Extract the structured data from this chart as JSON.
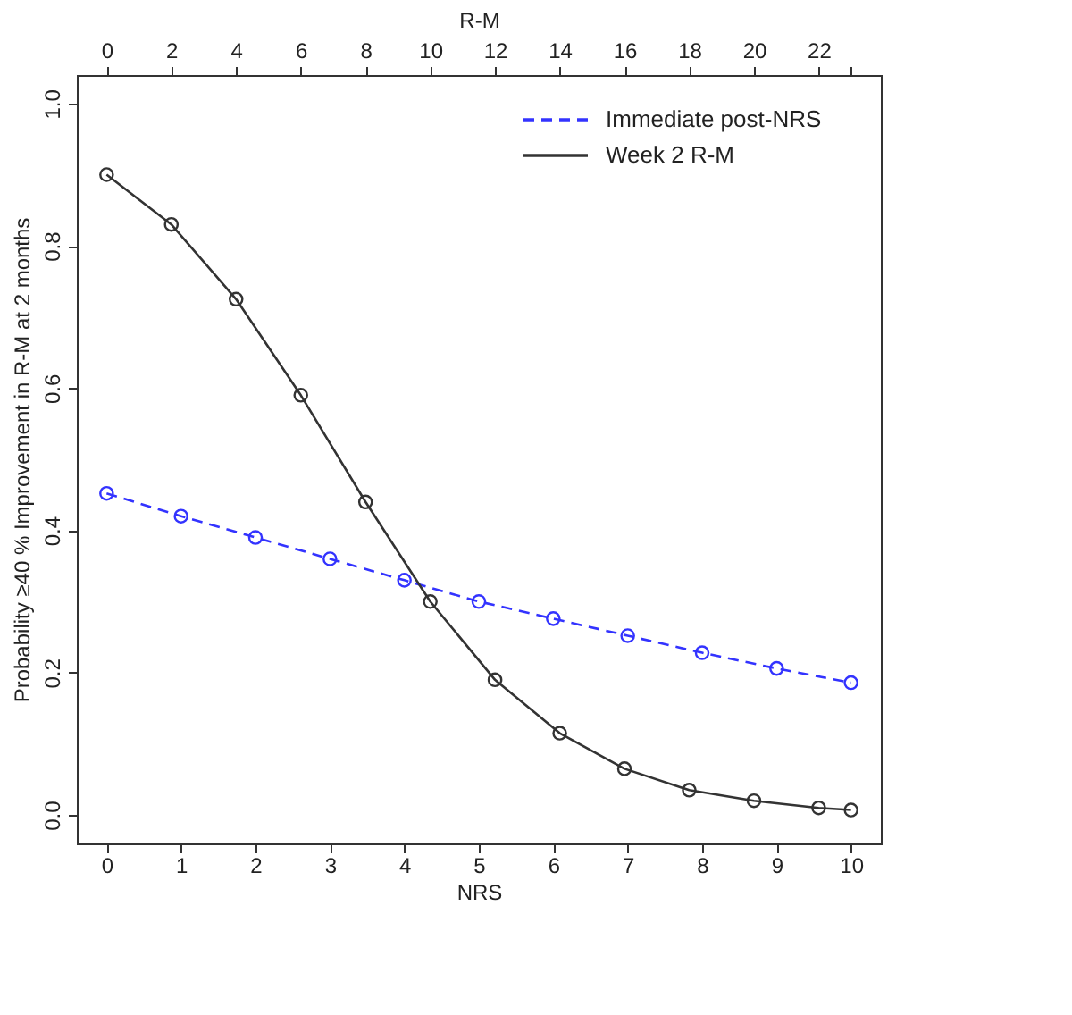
{
  "chart_data": {
    "type": "line",
    "xlabel": "NRS",
    "x2label": "R-M",
    "ylabel": "Probability ≥40 % Improvement in R-M at 2 months",
    "xlim": [
      -0.4,
      10.4
    ],
    "xticks": [
      0,
      1,
      2,
      3,
      4,
      5,
      6,
      7,
      8,
      9,
      10
    ],
    "x2lim": [
      -0.92,
      23.92
    ],
    "x2ticks": [
      0,
      2,
      4,
      6,
      8,
      10,
      12,
      14,
      16,
      18,
      20,
      22,
      {
        "value": 23,
        "label": null
      }
    ],
    "ylim": [
      -0.04,
      1.04
    ],
    "yticks": [
      {
        "value": 0,
        "label": "0.0"
      },
      0.2,
      0.4,
      0.6,
      0.8,
      {
        "value": 1,
        "label": "1.0"
      }
    ],
    "grid": false,
    "legend": "top right",
    "marker": "circle",
    "series": [
      {
        "name": "Immediate post-NRS",
        "color": "#3333ff",
        "line_style": "dashed",
        "x": [
          0,
          1,
          2,
          3,
          4,
          5,
          6,
          7,
          8,
          9,
          10
        ],
        "values": [
          0.452,
          0.42,
          0.39,
          0.36,
          0.33,
          0.3,
          0.276,
          0.252,
          0.228,
          0.206,
          0.186
        ]
      },
      {
        "name": "Week 2 R-M",
        "color": "#333333",
        "line_style": "solid",
        "axis": "x2",
        "x": [
          0,
          2,
          4,
          6,
          8,
          10,
          12,
          14,
          16,
          18,
          20,
          22,
          23
        ],
        "values": [
          0.9,
          0.83,
          0.725,
          0.59,
          0.44,
          0.3,
          0.19,
          0.115,
          0.065,
          0.035,
          0.02,
          0.01,
          0.007
        ]
      }
    ]
  }
}
